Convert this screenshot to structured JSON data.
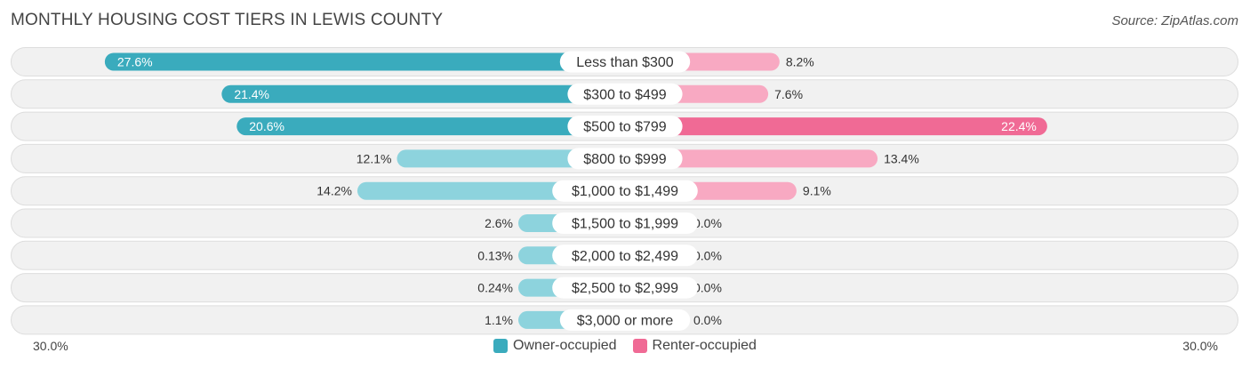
{
  "header": {
    "title": "MONTHLY HOUSING COST TIERS IN LEWIS COUNTY",
    "source": "Source: ZipAtlas.com"
  },
  "colors": {
    "owner": "#3aabbd",
    "owner_light": "#8dd3dd",
    "renter": "#f06a95",
    "renter_light": "#f8a9c2"
  },
  "chart_data": {
    "type": "bar",
    "orientation": "horizontal-diverging",
    "title": "MONTHLY HOUSING COST TIERS IN LEWIS COUNTY",
    "categories": [
      "Less than $300",
      "$300 to $499",
      "$500 to $799",
      "$800 to $999",
      "$1,000 to $1,499",
      "$1,500 to $1,999",
      "$2,000 to $2,499",
      "$2,500 to $2,999",
      "$3,000 or more"
    ],
    "series": [
      {
        "name": "Owner-occupied",
        "values": [
          27.6,
          21.4,
          20.6,
          12.1,
          14.2,
          2.6,
          0.13,
          0.24,
          1.1
        ],
        "labels": [
          "27.6%",
          "21.4%",
          "20.6%",
          "12.1%",
          "14.2%",
          "2.6%",
          "0.13%",
          "0.24%",
          "1.1%"
        ]
      },
      {
        "name": "Renter-occupied",
        "values": [
          8.2,
          7.6,
          22.4,
          13.4,
          9.1,
          0.0,
          0.0,
          0.0,
          0.0
        ],
        "labels": [
          "8.2%",
          "7.6%",
          "22.4%",
          "13.4%",
          "9.1%",
          "0.0%",
          "0.0%",
          "0.0%",
          "0.0%"
        ]
      }
    ],
    "axis": {
      "left_label": "30.0%",
      "right_label": "30.0%",
      "max": 30.0
    },
    "legend": {
      "owner": "Owner-occupied",
      "renter": "Renter-occupied",
      "position": "bottom-center"
    }
  }
}
